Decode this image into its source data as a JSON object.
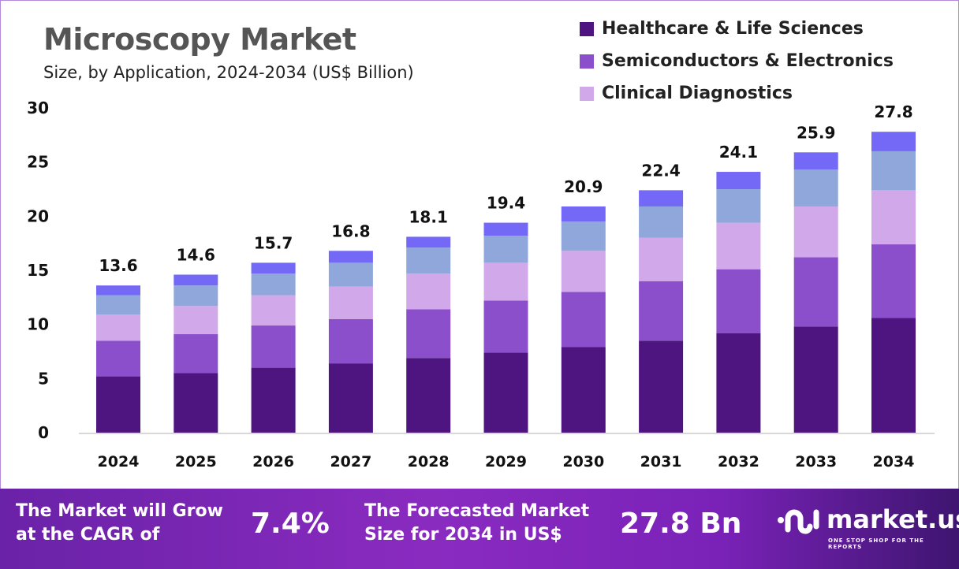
{
  "chart_data": {
    "type": "bar",
    "stacked": true,
    "title": "Microscopy Market",
    "subtitle": "Size, by Application, 2024-2034 (US$ Billion)",
    "categories": [
      "2024",
      "2025",
      "2026",
      "2027",
      "2028",
      "2029",
      "2030",
      "2031",
      "2032",
      "2033",
      "2034"
    ],
    "totals": [
      13.6,
      14.6,
      15.7,
      16.8,
      18.1,
      19.4,
      20.9,
      22.4,
      24.1,
      25.9,
      27.8
    ],
    "series": [
      {
        "name": "Healthcare & Life Sciences",
        "color": "#4e1581",
        "values": [
          5.2,
          5.5,
          6.0,
          6.4,
          6.9,
          7.4,
          7.9,
          8.5,
          9.2,
          9.8,
          10.6
        ]
      },
      {
        "name": "Semiconductors & Electronics",
        "color": "#8b4fcc",
        "values": [
          3.3,
          3.6,
          3.9,
          4.1,
          4.5,
          4.8,
          5.1,
          5.5,
          5.9,
          6.4,
          6.8
        ]
      },
      {
        "name": "Clinical Diagnostics",
        "color": "#d1a8ea",
        "values": [
          2.4,
          2.6,
          2.8,
          3.0,
          3.3,
          3.5,
          3.8,
          4.0,
          4.3,
          4.7,
          5.0
        ]
      },
      {
        "color": "#8fa7da",
        "values": [
          1.8,
          1.9,
          2.0,
          2.2,
          2.4,
          2.5,
          2.7,
          2.9,
          3.1,
          3.4,
          3.6
        ]
      },
      {
        "color": "#7469f7",
        "values": [
          0.9,
          1.0,
          1.0,
          1.1,
          1.0,
          1.2,
          1.4,
          1.5,
          1.6,
          1.6,
          1.8
        ]
      }
    ],
    "ylim": [
      0,
      30
    ],
    "yticks": [
      "0",
      "5",
      "10",
      "15",
      "20",
      "25",
      "30"
    ],
    "grid": false,
    "legend_position": "top-right"
  },
  "banner": {
    "cagr_label_1": "The Market will Grow",
    "cagr_label_2": "at the CAGR of",
    "cagr_value": "7.4%",
    "forecast_label_1": "The Forecasted Market",
    "forecast_label_2": "Size for 2034 in US$",
    "forecast_value": "27.8 Bn",
    "logo_name": "market.us",
    "logo_tagline": "ONE STOP SHOP FOR THE REPORTS"
  }
}
